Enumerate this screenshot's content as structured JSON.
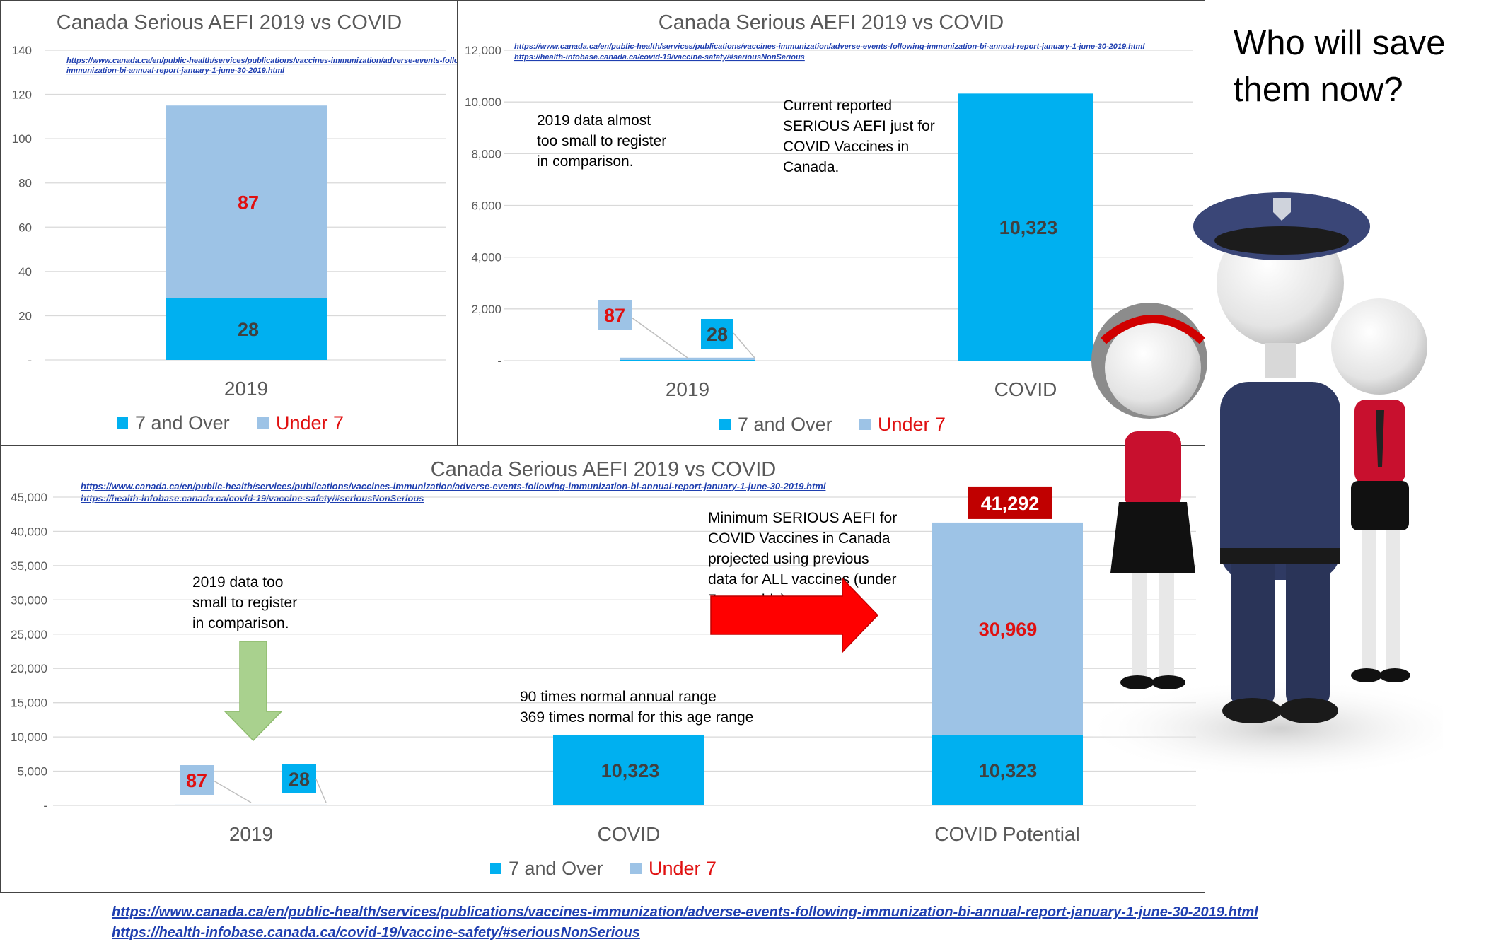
{
  "headline": "Who will save them now?",
  "footer_links": [
    "https://www.canada.ca/en/public-health/services/publications/vaccines-immunization/adverse-events-following-immunization-bi-annual-report-january-1-june-30-2019.html",
    "https://health-infobase.canada.ca/covid-19/vaccine-safety/#seriousNonSerious"
  ],
  "colors": {
    "seven_and_over": "#00b0f0",
    "under_7": "#9dc3e6",
    "red_text": "#e01010",
    "red_arrow": "#ff0000",
    "green_arrow": "#a9d18e",
    "total_box": "#c00000"
  },
  "legend": {
    "seven_and_over": "7 and Over",
    "under_7": "Under 7"
  },
  "chart_data": [
    {
      "type": "bar",
      "stacked": true,
      "title": "Canada Serious AEFI  2019 vs COVID",
      "categories": [
        "2019"
      ],
      "series": [
        {
          "name": "7 and Over",
          "values": [
            28
          ],
          "labels": [
            "28"
          ]
        },
        {
          "name": "Under 7",
          "values": [
            87
          ],
          "labels": [
            "87"
          ]
        }
      ],
      "ylim": [
        0,
        140
      ],
      "yticks": [
        "-",
        "20",
        "40",
        "60",
        "80",
        "100",
        "120",
        "140"
      ],
      "legend_position": "bottom",
      "grid": true,
      "source_links": [
        "https://www.canada.ca/en/public-health/services/publications/vaccines-immunization/adverse-events-following-",
        "immunization-bi-annual-report-january-1-june-30-2019.html"
      ]
    },
    {
      "type": "bar",
      "stacked": true,
      "title": "Canada Serious AEFI  2019 vs COVID",
      "categories": [
        "2019",
        "COVID"
      ],
      "series": [
        {
          "name": "7 and Over",
          "values": [
            28,
            10323
          ],
          "labels": [
            "28",
            "10,323"
          ]
        },
        {
          "name": "Under 7",
          "values": [
            87,
            0
          ],
          "labels": [
            "87",
            ""
          ]
        }
      ],
      "ylim": [
        0,
        12000
      ],
      "yticks": [
        "-",
        "2,000",
        "4,000",
        "6,000",
        "8,000",
        "10,000",
        "12,000"
      ],
      "legend_position": "bottom",
      "grid": true,
      "source_links": [
        "https://www.canada.ca/en/public-health/services/publications/vaccines-immunization/adverse-events-following-immunization-bi-annual-report-january-1-june-30-2019.html",
        "https://health-infobase.canada.ca/covid-19/vaccine-safety/#seriousNonSerious"
      ],
      "annotations": [
        {
          "lines": [
            "2019 data almost",
            "too small to register",
            "in comparison."
          ]
        },
        {
          "lines": [
            "Current reported",
            "SERIOUS AEFI just for",
            "COVID Vaccines in",
            "Canada."
          ]
        }
      ]
    },
    {
      "type": "bar",
      "stacked": true,
      "title": "Canada Serious AEFI  2019 vs COVID",
      "categories": [
        "2019",
        "COVID",
        "COVID Potential"
      ],
      "series": [
        {
          "name": "7 and Over",
          "values": [
            28,
            10323,
            10323
          ],
          "labels": [
            "28",
            "10,323",
            "10,323"
          ]
        },
        {
          "name": "Under 7",
          "values": [
            87,
            0,
            30969
          ],
          "labels": [
            "87",
            "",
            "30,969"
          ]
        }
      ],
      "totals": [
        null,
        null,
        41292
      ],
      "total_labels": [
        "",
        "",
        "41,292"
      ],
      "ylim": [
        0,
        45000
      ],
      "yticks": [
        "-",
        "5,000",
        "10,000",
        "15,000",
        "20,000",
        "25,000",
        "30,000",
        "35,000",
        "40,000",
        "45,000"
      ],
      "legend_position": "bottom",
      "grid": true,
      "source_links": [
        "https://www.canada.ca/en/public-health/services/publications/vaccines-immunization/adverse-events-following-immunization-bi-annual-report-january-1-june-30-2019.html",
        "https://health-infobase.canada.ca/covid-19/vaccine-safety/#seriousNonSerious"
      ],
      "annotations": [
        {
          "lines": [
            "2019 data too",
            "small to register",
            "in comparison."
          ]
        },
        {
          "lines": [
            "Minimum SERIOUS AEFI for",
            "COVID Vaccines in Canada",
            "projected using previous",
            "data for ALL vaccines (under",
            "7 year olds)."
          ]
        },
        {
          "lines": [
            "90 times normal  annual range",
            "369 times normal for this age range"
          ]
        }
      ]
    }
  ]
}
